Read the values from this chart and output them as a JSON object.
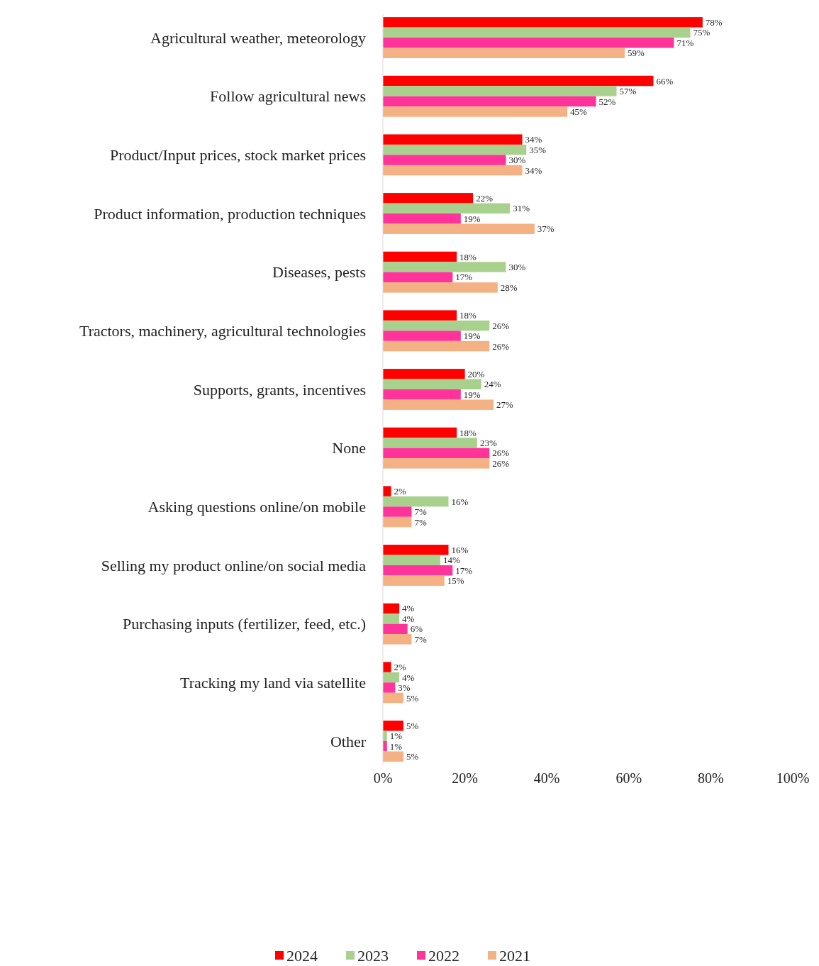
{
  "chart_data": {
    "type": "bar",
    "orientation": "horizontal",
    "categories": [
      "Agricultural weather, meteorology",
      "Follow agricultural news",
      "Product/Input prices, stock market prices",
      "Product information, production techniques",
      "Diseases, pests",
      "Tractors, machinery, agricultural technologies",
      "Supports, grants, incentives",
      "None",
      "Asking questions online/on mobile",
      "Selling my product online/on social media",
      "Purchasing inputs (fertilizer, feed, etc.)",
      "Tracking my land via satellite",
      "Other"
    ],
    "series": [
      {
        "name": "2024",
        "color": "#ff0000",
        "values": [
          78,
          66,
          34,
          22,
          18,
          18,
          20,
          18,
          2,
          16,
          4,
          2,
          5
        ]
      },
      {
        "name": "2023",
        "color": "#a9d18e",
        "values": [
          75,
          57,
          35,
          31,
          30,
          26,
          24,
          23,
          16,
          14,
          4,
          4,
          1
        ]
      },
      {
        "name": "2022",
        "color": "#ff3399",
        "values": [
          71,
          52,
          30,
          19,
          17,
          19,
          19,
          26,
          7,
          17,
          6,
          3,
          1
        ]
      },
      {
        "name": "2021",
        "color": "#f4b183",
        "values": [
          59,
          45,
          34,
          37,
          28,
          26,
          27,
          26,
          7,
          15,
          7,
          5,
          5
        ]
      }
    ],
    "xlim": [
      0,
      100
    ],
    "xticks": [
      {
        "value": 0,
        "label": "0%"
      },
      {
        "value": 20,
        "label": "20%"
      },
      {
        "value": 40,
        "label": "40%"
      },
      {
        "value": 60,
        "label": "60%"
      },
      {
        "value": 80,
        "label": "80%"
      },
      {
        "value": 100,
        "label": "100%"
      }
    ],
    "value_labels": [
      [
        "78%",
        "66%",
        "34%",
        "22%",
        "18%",
        "18%",
        "20%",
        "18%",
        "2%",
        "16%",
        "4%",
        "2%",
        "5%"
      ],
      [
        "75%",
        "57%",
        "35%",
        "31%",
        "30%",
        "26%",
        "24%",
        "23%",
        "16%",
        "14%",
        "4%",
        "4%",
        "1%"
      ],
      [
        "71%",
        "52%",
        "30%",
        "19%",
        "17%",
        "19%",
        "19%",
        "26%",
        "7%",
        "17%",
        "6%",
        "3%",
        "1%"
      ],
      [
        "59%",
        "45%",
        "34%",
        "37%",
        "28%",
        "26%",
        "27%",
        "26%",
        "7%",
        "15%",
        "7%",
        "5%",
        "5%"
      ]
    ],
    "grid": false,
    "legend": "bottom"
  }
}
